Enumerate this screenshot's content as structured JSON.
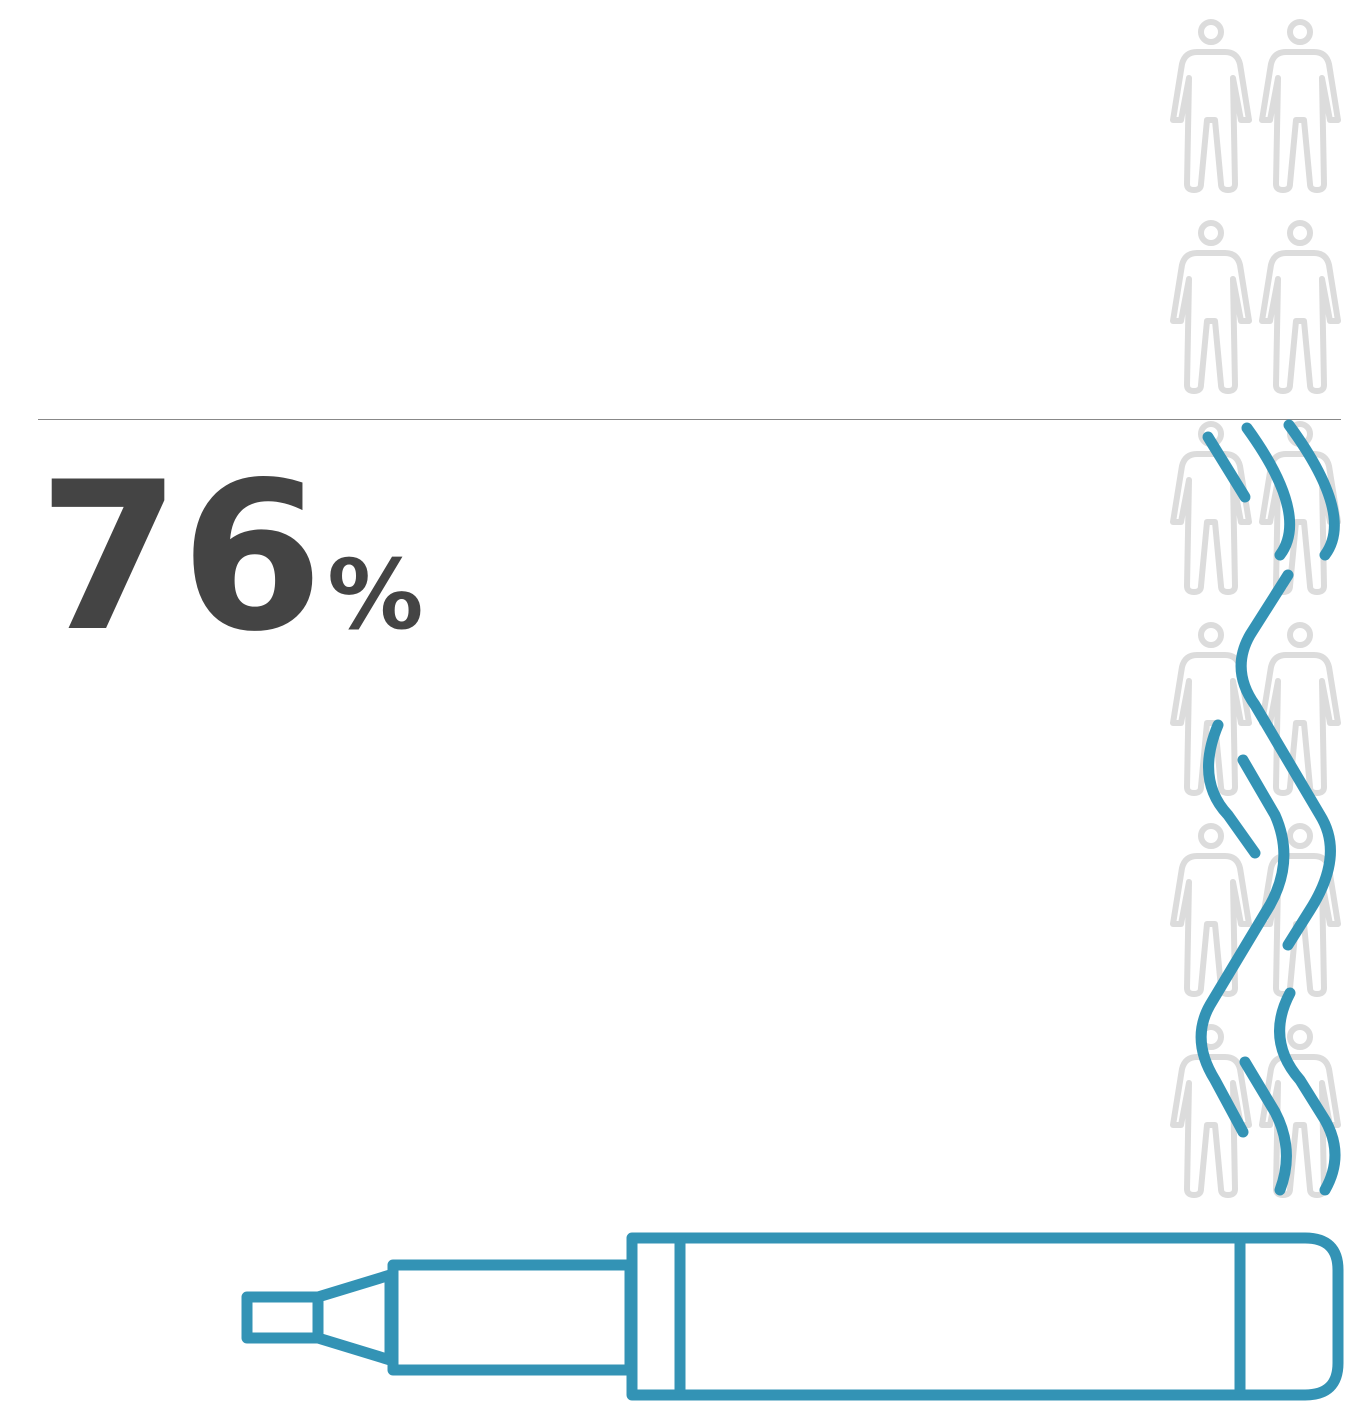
{
  "stat": {
    "value": 76,
    "unit": "%"
  }
}
